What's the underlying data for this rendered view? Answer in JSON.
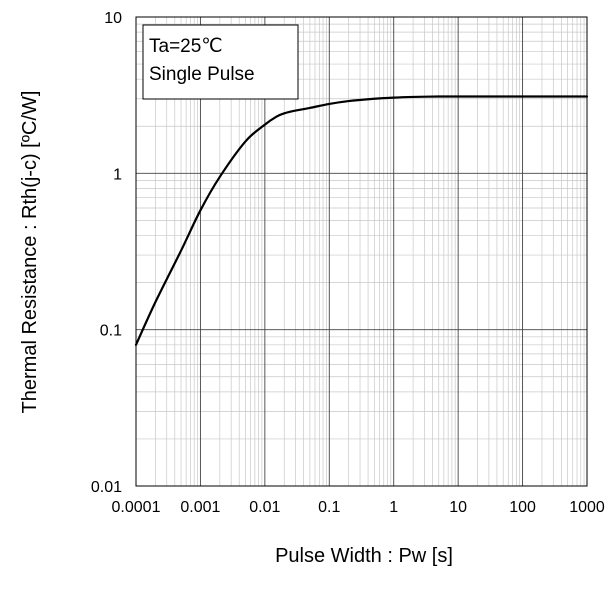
{
  "chart_data": {
    "type": "line",
    "xscale": "log",
    "yscale": "log",
    "xlim": [
      0.0001,
      1000
    ],
    "ylim": [
      0.01,
      10
    ],
    "xlabel": "Pulse Width : Pw [s]",
    "ylabel": "Thermal  Resistance : Rth(j-c) [ºC/W]",
    "x_ticks": [
      "0.0001",
      "0.001",
      "0.01",
      "0.1",
      "1",
      "10",
      "100",
      "1000"
    ],
    "y_ticks": [
      "0.01",
      "0.1",
      "1",
      "10"
    ],
    "grid": true,
    "annotation": [
      "Ta=25℃",
      "Single Pulse"
    ],
    "series": [
      {
        "x": [
          0.0001,
          0.0002,
          0.0005,
          0.001,
          0.002,
          0.005,
          0.01,
          0.015,
          0.02,
          0.03,
          0.05,
          0.1,
          0.2,
          0.5,
          1,
          2,
          5,
          10,
          100,
          1000
        ],
        "y": [
          0.08,
          0.15,
          0.32,
          0.58,
          0.95,
          1.6,
          2.05,
          2.3,
          2.42,
          2.52,
          2.62,
          2.78,
          2.9,
          3.0,
          3.05,
          3.08,
          3.1,
          3.1,
          3.1,
          3.1
        ]
      }
    ]
  }
}
